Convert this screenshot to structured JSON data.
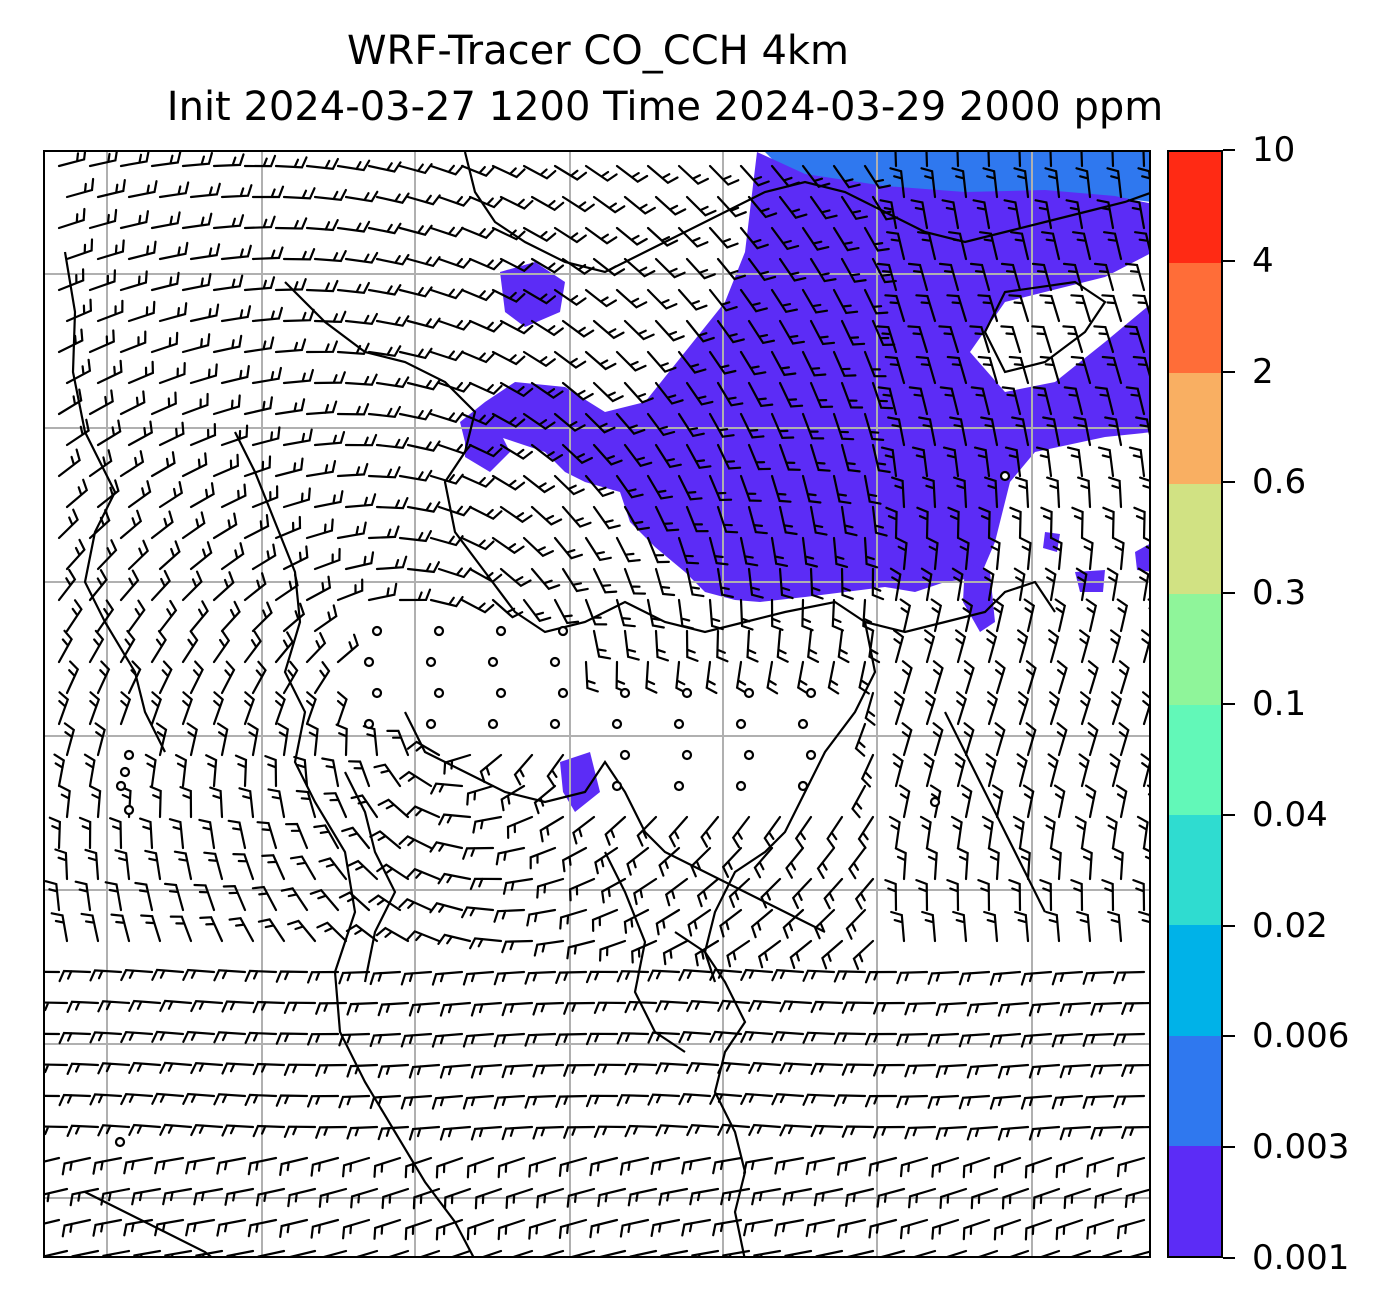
{
  "title": {
    "line1": "WRF-Tracer CO_CCH 4km",
    "line2": "Init 2024-03-27 1200 Time 2024-03-29 2000 ppm"
  },
  "colorbar": {
    "ticks": [
      "0.001",
      "0.003",
      "0.006",
      "0.02",
      "0.04",
      "0.1",
      "0.3",
      "0.6",
      "2",
      "4",
      "10"
    ],
    "colors": [
      "#5c2cf6",
      "#2f78ef",
      "#00b2e8",
      "#2fdcd0",
      "#62f8b8",
      "#8ff59a",
      "#d1e283",
      "#f9af62",
      "#ff6d38",
      "#ff2a14"
    ]
  },
  "map": {
    "field": "CO_CCH tracer concentration",
    "overlay": "wind barbs",
    "gridlines": true,
    "coastlines": true,
    "plume_color": "#5c2cf6",
    "plume_edge_color": "#2f78ef"
  }
}
